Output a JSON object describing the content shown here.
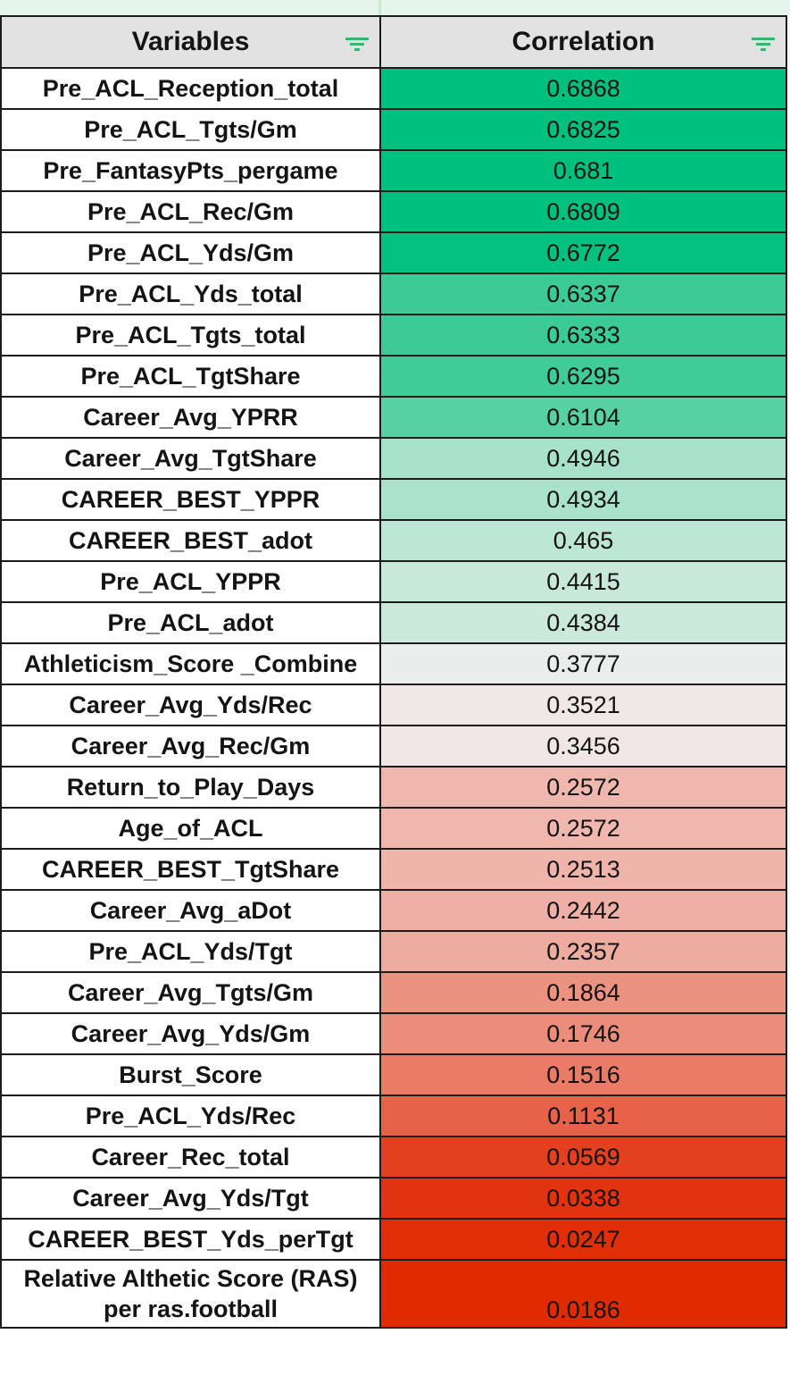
{
  "table": {
    "headers": {
      "variables": "Variables",
      "correlation": "Correlation"
    },
    "filter_icon": "filter-icon",
    "filter_icon_color": "#35b86e",
    "header_bg": "#e2e2e2",
    "rows": [
      {
        "variable": "Pre_ACL_Reception_total",
        "correlation": "0.6868",
        "color": "#00c080"
      },
      {
        "variable": "Pre_ACL_Tgts/Gm",
        "correlation": "0.6825",
        "color": "#00c080"
      },
      {
        "variable": "Pre_FantasyPts_pergame",
        "correlation": "0.681",
        "color": "#00c080"
      },
      {
        "variable": "Pre_ACL_Rec/Gm",
        "correlation": "0.6809",
        "color": "#00c080"
      },
      {
        "variable": "Pre_ACL_Yds/Gm",
        "correlation": "0.6772",
        "color": "#04c182"
      },
      {
        "variable": "Pre_ACL_Yds_total",
        "correlation": "0.6337",
        "color": "#3ccb96"
      },
      {
        "variable": "Pre_ACL_Tgts_total",
        "correlation": "0.6333",
        "color": "#3ccb96"
      },
      {
        "variable": "Pre_ACL_TgtShare",
        "correlation": "0.6295",
        "color": "#40cc98"
      },
      {
        "variable": "Career_Avg_YPRR",
        "correlation": "0.6104",
        "color": "#58d1a2"
      },
      {
        "variable": "Career_Avg_TgtShare",
        "correlation": "0.4946",
        "color": "#a9e2cb"
      },
      {
        "variable": "CAREER_BEST_YPPR",
        "correlation": "0.4934",
        "color": "#aae2cc"
      },
      {
        "variable": "CAREER_BEST_adot",
        "correlation": "0.465",
        "color": "#bce6d5"
      },
      {
        "variable": "Pre_ACL_YPPR",
        "correlation": "0.4415",
        "color": "#c8e9da"
      },
      {
        "variable": "Pre_ACL_adot",
        "correlation": "0.4384",
        "color": "#cae9db"
      },
      {
        "variable": "Athleticism_Score _Combine",
        "correlation": "0.3777",
        "color": "#ebeded"
      },
      {
        "variable": "Career_Avg_Yds/Rec",
        "correlation": "0.3521",
        "color": "#f0e8e6"
      },
      {
        "variable": "Career_Avg_Rec/Gm",
        "correlation": "0.3456",
        "color": "#f0e6e3"
      },
      {
        "variable": "Return_to_Play_Days",
        "correlation": "0.2572",
        "color": "#efb7ae"
      },
      {
        "variable": "Age_of_ACL",
        "correlation": "0.2572",
        "color": "#efb7ae"
      },
      {
        "variable": "CAREER_BEST_TgtShare",
        "correlation": "0.2513",
        "color": "#efb4aa"
      },
      {
        "variable": "Career_Avg_aDot",
        "correlation": "0.2442",
        "color": "#eeb0a6"
      },
      {
        "variable": "Pre_ACL_Yds/Tgt",
        "correlation": "0.2357",
        "color": "#eeaca1"
      },
      {
        "variable": "Career_Avg_Tgts/Gm",
        "correlation": "0.1864",
        "color": "#ec9281"
      },
      {
        "variable": "Career_Avg_Yds/Gm",
        "correlation": "0.1746",
        "color": "#ec8c7a"
      },
      {
        "variable": "Burst_Score",
        "correlation": "0.1516",
        "color": "#ea7c67"
      },
      {
        "variable": "Pre_ACL_Yds/Rec",
        "correlation": "0.1131",
        "color": "#e8624a"
      },
      {
        "variable": "Career_Rec_total",
        "correlation": "0.0569",
        "color": "#e3401f"
      },
      {
        "variable": "Career_Avg_Yds/Tgt",
        "correlation": "0.0338",
        "color": "#e2330f"
      },
      {
        "variable": "CAREER_BEST_Yds_perTgt",
        "correlation": "0.0247",
        "color": "#e12e06"
      },
      {
        "variable": "Relative Althetic Score (RAS)\nper ras.football",
        "correlation": "0.0186",
        "color": "#e02a00",
        "tall": true
      }
    ]
  }
}
